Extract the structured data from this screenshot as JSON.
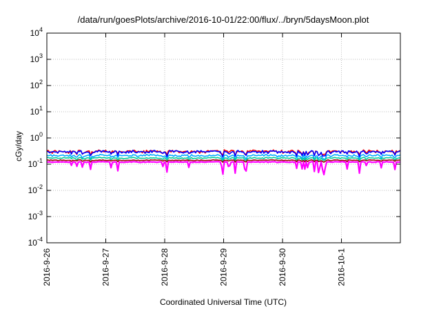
{
  "chart_data": {
    "type": "line",
    "title": "/data/run/goesPlots/archive/2016-10-01/22:00/flux/../bryn/5daysMoon.plot",
    "xlabel": "Coordinated Universal Time (UTC)",
    "ylabel": "cGy/day",
    "yscale": "log",
    "ylim": [
      0.0001,
      10000
    ],
    "y_ticks": [
      {
        "value": 0.0001,
        "base": "10",
        "exp": "-4"
      },
      {
        "value": 0.001,
        "base": "10",
        "exp": "-3"
      },
      {
        "value": 0.01,
        "base": "10",
        "exp": "-2"
      },
      {
        "value": 0.1,
        "base": "10",
        "exp": "-1"
      },
      {
        "value": 1,
        "base": "10",
        "exp": "0"
      },
      {
        "value": 10,
        "base": "10",
        "exp": "1"
      },
      {
        "value": 100,
        "base": "10",
        "exp": "2"
      },
      {
        "value": 1000,
        "base": "10",
        "exp": "3"
      },
      {
        "value": 10000,
        "base": "10",
        "exp": "4"
      }
    ],
    "x_ticks": [
      "2016-9-26",
      "2016-9-27",
      "2016-9-28",
      "2016-9-29",
      "2016-9-30",
      "2016-10-1"
    ],
    "xlim": [
      "2016-09-26T00:00",
      "2016-10-01T23:59"
    ],
    "grid": true,
    "legend": "none",
    "series": [
      {
        "color": "#ff0000",
        "base_value": 0.3,
        "spread": 0.35,
        "dip": 0.2
      },
      {
        "color": "#0000ff",
        "base_value": 0.29,
        "spread": 0.35,
        "dip": 0.25
      },
      {
        "color": "#00aaff",
        "base_value": 0.21,
        "spread": 0.25,
        "dip": 0.2
      },
      {
        "color": "#00cc99",
        "base_value": 0.17,
        "spread": 0.15,
        "dip": 0.15
      },
      {
        "color": "#990000",
        "base_value": 0.14,
        "spread": 0.1,
        "dip": 0.1
      },
      {
        "color": "#ff00ff",
        "base_value": 0.12,
        "spread": 0.1,
        "dip": 0.45
      }
    ]
  }
}
